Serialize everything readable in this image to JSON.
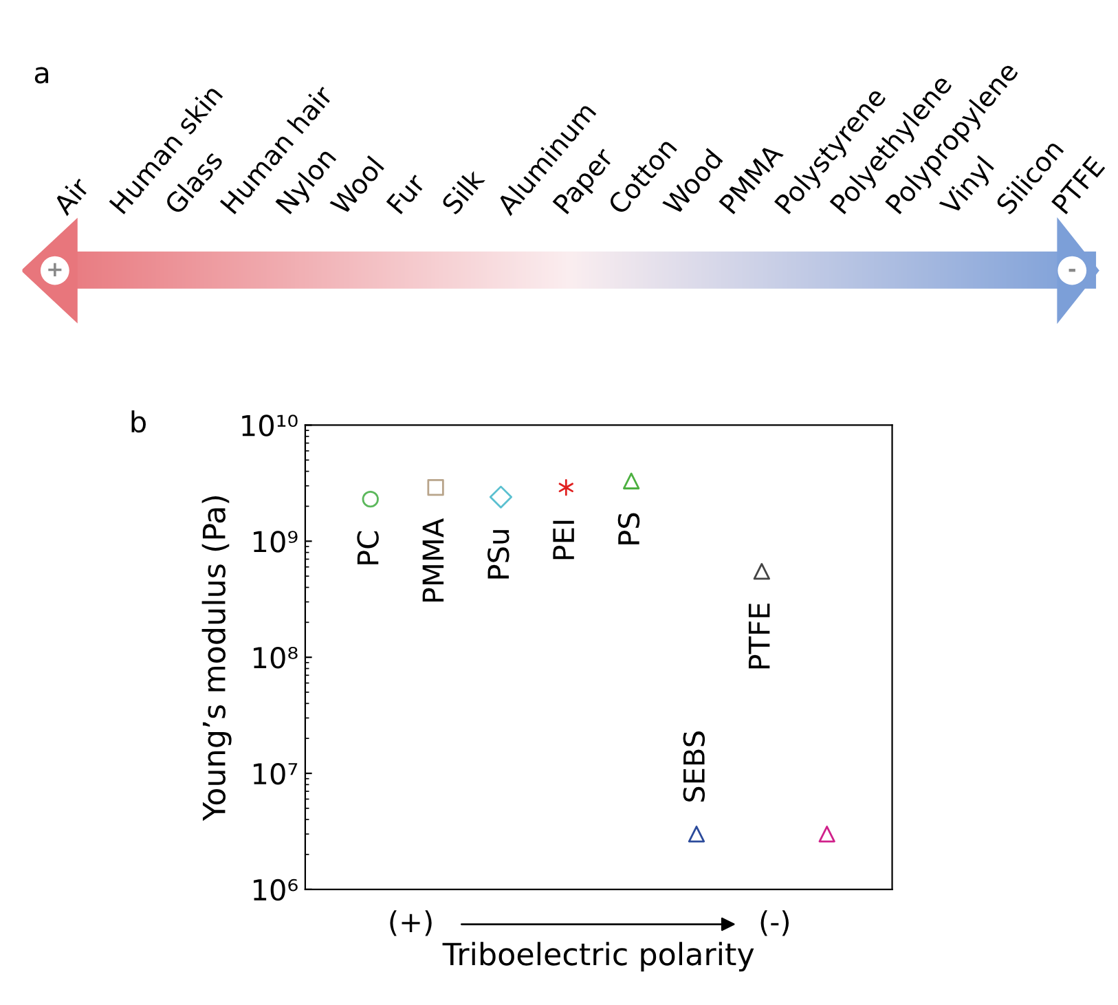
{
  "chart_data": [
    {
      "type": "other",
      "title": "a",
      "categories": [
        "Air",
        "Human skin",
        "Glass",
        "Human hair",
        "Nylon",
        "Wool",
        "Fur",
        "Silk",
        "Aluminum",
        "Paper",
        "Cotton",
        "Wood",
        "PMMA",
        "Polystyrene",
        "Polyethylene",
        "Polypropylene",
        "Vinyl",
        "Silicon",
        "PTFE"
      ],
      "colors": [
        "#e8767c",
        "#fbeef0",
        "#7c9fd8"
      ],
      "annotations": [
        "+",
        "-"
      ]
    },
    {
      "type": "scatter",
      "title": "b",
      "ylabel": "Young’s modulus (Pa)",
      "xlabel": "Triboelectric polarity",
      "categories": [
        null,
        null,
        null,
        null,
        null,
        null,
        null,
        null
      ],
      "annotations": [
        "(+)",
        "(-)"
      ],
      "log": "y",
      "ylim": [
        1000000.0,
        10000000000.0
      ],
      "yticks": [
        {
          "value": 1000000.0,
          "label": "10⁶"
        },
        {
          "value": 10000000.0,
          "label": "10⁷"
        },
        {
          "value": 100000000.0,
          "label": "10⁸"
        },
        {
          "value": 1000000000.0,
          "label": "10⁹"
        },
        {
          "value": 10000000000.0,
          "label": "10¹⁰"
        }
      ],
      "grid": false,
      "legend": false,
      "series": [
        {
          "name": "PC",
          "color": "#5cb85c",
          "marker": "circle",
          "values": [
            2300000000.0,
            null,
            null,
            null,
            null,
            null,
            null,
            null
          ]
        },
        {
          "name": "PMMA",
          "color": "#b8a48a",
          "marker": "square",
          "values": [
            null,
            2900000000.0,
            null,
            null,
            null,
            null,
            null,
            null
          ]
        },
        {
          "name": "PSu",
          "color": "#5bc0d0",
          "marker": "diamond",
          "values": [
            null,
            null,
            2400000000.0,
            null,
            null,
            null,
            null,
            null
          ]
        },
        {
          "name": "PEI",
          "color": "#e02020",
          "marker": "cross",
          "values": [
            null,
            null,
            null,
            2900000000.0,
            null,
            null,
            null,
            null
          ]
        },
        {
          "name": "PS",
          "color": "#4cb040",
          "marker": "triangle",
          "values": [
            null,
            null,
            null,
            null,
            3300000000.0,
            null,
            null,
            null
          ]
        },
        {
          "name": "SEBS",
          "color": "#2b4a9b",
          "marker": "triangle",
          "values": [
            null,
            null,
            null,
            null,
            null,
            3000000.0,
            null,
            null
          ]
        },
        {
          "name": "PTFE",
          "color": "#444444",
          "marker": "triangle",
          "values": [
            null,
            null,
            null,
            null,
            null,
            null,
            550000000.0,
            null
          ]
        },
        {
          "color": "#d0208a",
          "marker": "triangle",
          "values": [
            null,
            null,
            null,
            null,
            null,
            null,
            null,
            3000000.0
          ]
        }
      ]
    }
  ]
}
